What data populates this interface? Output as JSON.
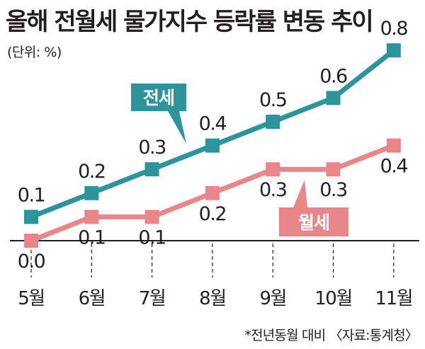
{
  "title": "올해 전월세 물가지수 등락률 변동 추이",
  "unit": "(단위: %)",
  "note": "*전년동월 대비  〈자료:통계청〉",
  "colors": {
    "jeonse": "#2e949b",
    "wolse": "#e8868a",
    "axis": "#231f20"
  },
  "chart_data": {
    "type": "line",
    "categories": [
      "5월",
      "6월",
      "7월",
      "8월",
      "9월",
      "10월",
      "11월"
    ],
    "series": [
      {
        "name": "전세",
        "values": [
          0.1,
          0.2,
          0.3,
          0.4,
          0.5,
          0.6,
          0.8
        ]
      },
      {
        "name": "월세",
        "values": [
          0.0,
          0.1,
          0.1,
          0.2,
          0.3,
          0.3,
          0.4
        ]
      }
    ],
    "title": "올해 전월세 물가지수 등락률 변동 추이",
    "xlabel": "",
    "ylabel": "",
    "ylim": [
      0,
      0.8
    ],
    "value_labels": {
      "전세": [
        "0.1",
        "0.2",
        "0.3",
        "0.4",
        "0.5",
        "0.6",
        "0.8"
      ],
      "월세": [
        "0.0",
        "0.1",
        "0.1",
        "0.2",
        "0.3",
        "0.3",
        "0.4"
      ]
    },
    "grid": false,
    "legend": "inline tags"
  }
}
